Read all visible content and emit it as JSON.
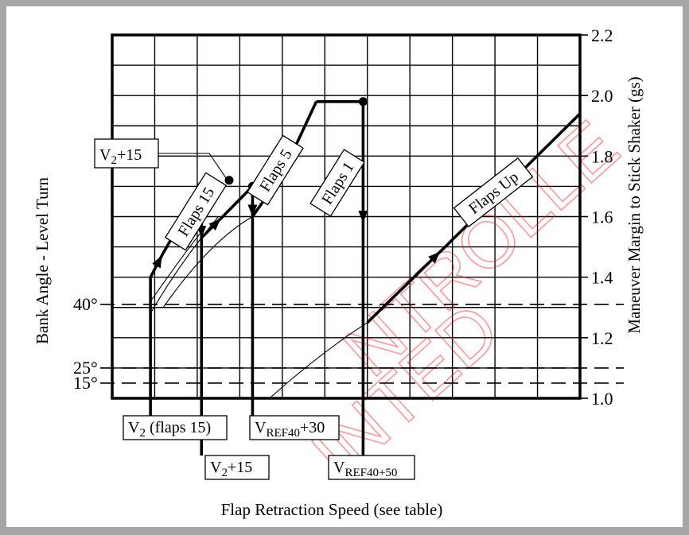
{
  "chart_data": {
    "type": "line",
    "xlabel": "Flap Retraction Speed (see table)",
    "ylabel_left": "Bank Angle - Level Turn",
    "ylabel_right": "Maneuver Margin to Stick Shaker (gs)",
    "y_right_ticks": [
      "1.0",
      "1.2",
      "1.4",
      "1.6",
      "1.8",
      "2.0",
      "2.2"
    ],
    "ylim": [
      1.0,
      2.2
    ],
    "bank_lines": [
      {
        "label": "40°",
        "value": 1.31
      },
      {
        "label": "25°",
        "value": 1.1
      },
      {
        "label": "15°",
        "value": 1.05
      }
    ],
    "grid": true,
    "series": [
      {
        "name": "Flaps 15",
        "points": [
          [
            0.9,
            1.4
          ],
          [
            1.2,
            1.48
          ],
          [
            2.1,
            1.7
          ]
        ]
      },
      {
        "name": "Flaps 5",
        "points": [
          [
            2.1,
            1.53
          ],
          [
            2.6,
            1.6
          ],
          [
            3.3,
            1.7
          ]
        ]
      },
      {
        "name": "Flaps 1",
        "points": [
          [
            3.3,
            1.6
          ],
          [
            4.0,
            1.74
          ],
          [
            4.8,
            1.98
          ]
        ]
      },
      {
        "name": "Flaps Up",
        "points": [
          [
            6.0,
            1.25
          ],
          [
            7.9,
            1.51
          ],
          [
            11.0,
            1.94
          ]
        ]
      }
    ],
    "speed_labels": [
      {
        "main": "V",
        "sub": "2",
        "rest": " (flaps 15)"
      },
      {
        "main": "V",
        "sub": "2",
        "rest": "+15"
      },
      {
        "main": "V",
        "sub": "REF40",
        "rest": "+30"
      },
      {
        "main": "V",
        "sub": "REF40+50",
        "rest": ""
      }
    ],
    "callout": {
      "main": "V",
      "sub": "2",
      "rest": "+15"
    }
  }
}
